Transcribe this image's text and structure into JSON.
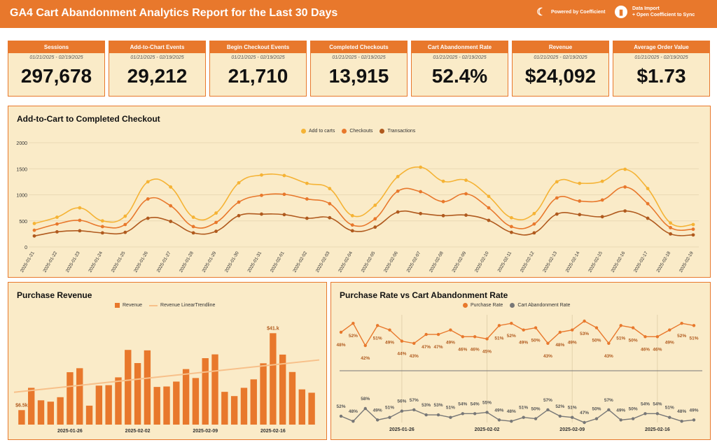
{
  "header": {
    "title": "GA4 Cart Abandonment Analytics Report for the Last 30 Days",
    "powered_by": "Powered by Coefficient",
    "import_line1": "Data Import",
    "import_line2": "+ Open Coefficient to Sync",
    "colors": {
      "bar": "#e8782c",
      "text": "#ffffff"
    }
  },
  "kpis": [
    {
      "title": "Sessions",
      "date": "01/21/2025 - 02/19/2025",
      "value": "297,678"
    },
    {
      "title": "Add-to-Chart Events",
      "date": "01/21/2025 - 02/19/2025",
      "value": "29,212"
    },
    {
      "title": "Begin Checkout Events",
      "date": "01/21/2025 - 02/19/2025",
      "value": "21,710"
    },
    {
      "title": "Completed Checkouts",
      "date": "01/21/2025 - 02/19/2025",
      "value": "13,915"
    },
    {
      "title": "Cart Abandonment Rate",
      "date": "01/21/2025 - 02/19/2025",
      "value": "52.4%"
    },
    {
      "title": "Revenue",
      "date": "01/21/2025 - 02/19/2025",
      "value": "$24,092"
    },
    {
      "title": "Average Order Value",
      "date": "01/21/2025 - 02/19/2025",
      "value": "$1.73"
    }
  ],
  "chart_data": [
    {
      "type": "line",
      "title": "Add-to-Cart to Completed Checkout",
      "x": [
        "2025-01-21",
        "2025-01-22",
        "2025-01-23",
        "2025-01-24",
        "2025-01-25",
        "2025-01-26",
        "2025-01-27",
        "2025-01-28",
        "2025-01-29",
        "2025-01-30",
        "2025-01-31",
        "2025-02-01",
        "2025-02-02",
        "2025-02-03",
        "2025-02-04",
        "2025-02-05",
        "2025-02-06",
        "2025-02-07",
        "2025-02-08",
        "2025-02-09",
        "2025-02-10",
        "2025-02-11",
        "2025-02-12",
        "2025-02-13",
        "2025-02-14",
        "2025-02-15",
        "2025-02-16",
        "2025-02-17",
        "2025-02-18",
        "2025-02-19"
      ],
      "yticks": [
        0,
        500,
        1000,
        1500,
        2000
      ],
      "ylim": [
        0,
        2000
      ],
      "legend": "top-center",
      "series": [
        {
          "name": "Add to carts",
          "color": "#f5b335",
          "values": [
            450,
            570,
            750,
            500,
            590,
            1250,
            1150,
            570,
            650,
            1230,
            1380,
            1370,
            1220,
            1120,
            600,
            800,
            1350,
            1530,
            1260,
            1280,
            970,
            560,
            640,
            1250,
            1220,
            1260,
            1490,
            1120,
            460,
            430
          ]
        },
        {
          "name": "Checkouts",
          "color": "#e8782c",
          "values": [
            320,
            440,
            510,
            390,
            430,
            920,
            790,
            390,
            470,
            860,
            990,
            1010,
            920,
            830,
            420,
            540,
            1070,
            1060,
            870,
            1020,
            750,
            390,
            440,
            940,
            880,
            900,
            1150,
            830,
            370,
            340
          ]
        },
        {
          "name": "Transactions",
          "color": "#b05a1e",
          "values": [
            210,
            290,
            310,
            270,
            280,
            550,
            490,
            270,
            300,
            600,
            630,
            620,
            550,
            560,
            310,
            380,
            670,
            640,
            600,
            610,
            510,
            280,
            270,
            630,
            620,
            580,
            690,
            550,
            250,
            230
          ]
        }
      ]
    },
    {
      "type": "bar",
      "title": "Purchase Revenue",
      "x_ticks": [
        "2025-01-26",
        "2025-02-02",
        "2025-02-09",
        "2025-02-16"
      ],
      "ylim": [
        0,
        48
      ],
      "legend": "top-center",
      "series": [
        {
          "name": "Revenue",
          "color": "#e8782c",
          "values": [
            6.5,
            16.5,
            10.9,
            10.3,
            12.3,
            23.5,
            25.3,
            8.5,
            17.5,
            17.7,
            21.2,
            33.5,
            27.6,
            33.3,
            16.9,
            17.1,
            19.3,
            24.9,
            20.9,
            29.8,
            31.5,
            14.7,
            12.8,
            16.5,
            20.3,
            27.5,
            41.0,
            31.4,
            23.6,
            15.8,
            14.3
          ]
        },
        {
          "name": "Revenue LinearTrendline",
          "color": "#f7c08a",
          "from": 14.5,
          "to": 29.0
        }
      ],
      "data_labels": [
        {
          "index": 0,
          "text": "$6.5k"
        },
        {
          "index": 26,
          "text": "$41.k"
        }
      ]
    },
    {
      "type": "line",
      "title": "Purchase Rate vs Cart Abandonment Rate",
      "x_ticks": [
        "2025-01-26",
        "2025-02-02",
        "2025-02-09",
        "2025-02-16"
      ],
      "legend": "top-center",
      "series": [
        {
          "name": "Purchase Rate",
          "color": "#e8782c",
          "values": [
            48,
            52,
            42,
            51,
            49,
            44,
            43,
            47,
            47,
            49,
            46,
            46,
            45,
            51,
            52,
            49,
            50,
            43,
            48,
            49,
            53,
            50,
            43,
            51,
            50,
            46,
            46,
            49,
            52,
            51
          ],
          "labels": [
            "48%",
            "52%",
            "42%",
            "51%",
            "49%",
            "44%",
            "43%",
            "47%",
            "47%",
            "49%",
            "46%",
            "46%",
            "45%",
            "51%",
            "52%",
            "49%",
            "50%",
            "43%",
            "48%",
            "49%",
            "53%",
            "50%",
            "43%",
            "51%",
            "50%",
            "46%",
            "46%",
            "49%",
            "52%",
            "51%"
          ]
        },
        {
          "name": "Cart Abandonment Rate",
          "color": "#777777",
          "values": [
            52,
            48,
            58,
            49,
            51,
            56,
            57,
            53,
            53,
            51,
            54,
            54,
            55,
            49,
            48,
            51,
            50,
            57,
            52,
            51,
            47,
            50,
            57,
            49,
            50,
            54,
            54,
            51,
            48,
            49
          ],
          "labels": [
            "52%",
            "48%",
            "58%",
            "49%",
            "51%",
            "56%",
            "57%",
            "53%",
            "53%",
            "51%",
            "54%",
            "54%",
            "55%",
            "49%",
            "48%",
            "51%",
            "50%",
            "57%",
            "52%",
            "51%",
            "47%",
            "50%",
            "57%",
            "49%",
            "50%",
            "54%",
            "54%",
            "51%",
            "48%",
            "49%"
          ]
        }
      ]
    }
  ]
}
